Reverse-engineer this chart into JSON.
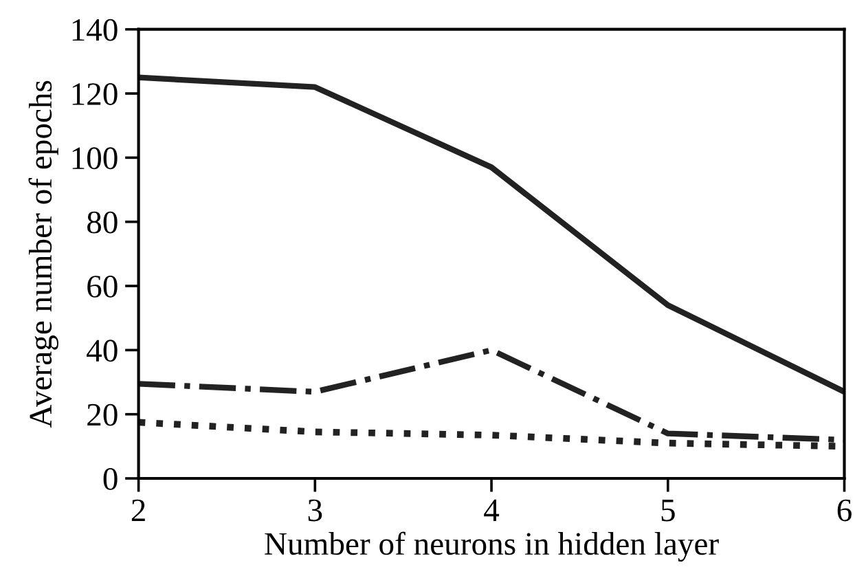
{
  "chart_data": {
    "type": "line",
    "xlabel": "Number of neurons in hidden layer",
    "ylabel": "Average number of epochs",
    "x": [
      2,
      3,
      4,
      5,
      6
    ],
    "series": [
      {
        "color": "#222222",
        "line_style": "solid",
        "values": [
          125,
          122,
          97,
          54,
          27
        ]
      },
      {
        "color": "#222222",
        "line_style": "dashdot",
        "values": [
          29.5,
          27,
          40,
          14,
          12
        ]
      },
      {
        "color": "#222222",
        "line_style": "dotted",
        "values": [
          17.5,
          14.5,
          13.5,
          11,
          10
        ]
      }
    ],
    "xlim": [
      2,
      6
    ],
    "ylim": [
      0,
      140
    ],
    "xticks": [
      2,
      3,
      4,
      5,
      6
    ],
    "yticks": [
      0,
      20,
      40,
      60,
      80,
      100,
      120,
      140
    ],
    "grid": false,
    "legend": false,
    "marker": "none"
  }
}
